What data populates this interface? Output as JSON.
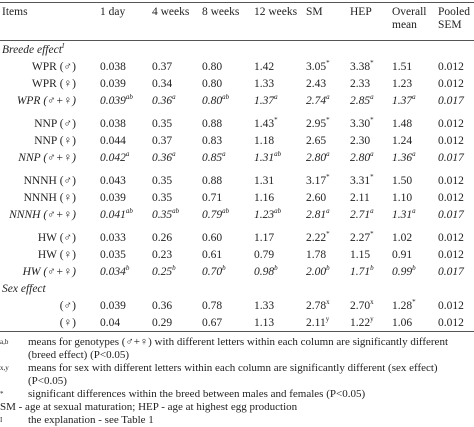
{
  "header": {
    "columns": [
      "Items",
      "1 day",
      "4 weeks",
      "8 weeks",
      "12 weeks",
      "SM",
      "HEP",
      "Overall mean",
      "Pooled SEM"
    ]
  },
  "sections": [
    {
      "title": "Breede effect",
      "title_sup": "I",
      "groups": [
        [
          {
            "label": "WPR (♂)",
            "cells": [
              "0.038",
              "0.37",
              "0.80",
              "1.42",
              {
                "text": "3.05",
                "sup": "*"
              },
              {
                "text": "3.38",
                "sup": "*"
              },
              "1.51",
              "0.012"
            ]
          },
          {
            "label": "WPR (♀)",
            "cells": [
              "0.039",
              "0.34",
              "0.80",
              "1.33",
              "2.43",
              "2.33",
              "1.23",
              "0.012"
            ]
          },
          {
            "label": "WPR (♂+♀)",
            "cells": [
              {
                "text": "0.039",
                "sup": "ab"
              },
              {
                "text": "0.36",
                "sup": "a"
              },
              {
                "text": "0.80",
                "sup": "ab"
              },
              {
                "text": "1.37",
                "sup": "a"
              },
              {
                "text": "2.74",
                "sup": "a"
              },
              {
                "text": "2.85",
                "sup": "a"
              },
              {
                "text": "1.37",
                "sup": "a"
              },
              "0.017"
            ]
          }
        ],
        [
          {
            "label": "NNP (♂)",
            "cells": [
              "0.038",
              "0.35",
              "0.88",
              {
                "text": "1.43",
                "sup": "*"
              },
              {
                "text": "2.95",
                "sup": "*"
              },
              {
                "text": "3.30",
                "sup": "*"
              },
              "1.48",
              "0.012"
            ]
          },
          {
            "label": "NNP (♀)",
            "cells": [
              "0.044",
              "0.37",
              "0.83",
              "1.18",
              "2.65",
              "2.30",
              "1.24",
              "0.012"
            ]
          },
          {
            "label": "NNP (♂+♀)",
            "cells": [
              {
                "text": "0.042",
                "sup": "a"
              },
              {
                "text": "0.36",
                "sup": "a"
              },
              {
                "text": "0.85",
                "sup": "a"
              },
              {
                "text": "1.31",
                "sup": "ab"
              },
              {
                "text": "2.80",
                "sup": "a"
              },
              {
                "text": "2.80",
                "sup": "a"
              },
              {
                "text": "1.36",
                "sup": "a"
              },
              "0.017"
            ]
          }
        ],
        [
          {
            "label": "NNNH (♂)",
            "cells": [
              "0.043",
              "0.35",
              "0.88",
              "1.31",
              {
                "text": "3.17",
                "sup": "*"
              },
              {
                "text": "3.31",
                "sup": "*"
              },
              "1.50",
              "0.012"
            ]
          },
          {
            "label": "NNNH (♀)",
            "cells": [
              "0.039",
              "0.35",
              "0.71",
              "1.16",
              "2.60",
              "2.11",
              "1.10",
              "0.012"
            ]
          },
          {
            "label": "NNNH (♂+♀)",
            "cells": [
              {
                "text": "0.041",
                "sup": "ab"
              },
              {
                "text": "0.35",
                "sup": "ab"
              },
              {
                "text": "0.79",
                "sup": "ab"
              },
              {
                "text": "1.23",
                "sup": "ab"
              },
              {
                "text": "2.81",
                "sup": "a"
              },
              {
                "text": "2.71",
                "sup": "a"
              },
              {
                "text": "1.31",
                "sup": "a"
              },
              "0.017"
            ]
          }
        ],
        [
          {
            "label": "HW (♂)",
            "cells": [
              "0.033",
              "0.26",
              "0.60",
              "1.17",
              {
                "text": "2.22",
                "sup": "*"
              },
              {
                "text": "2.27",
                "sup": "*"
              },
              "1.02",
              "0.012"
            ]
          },
          {
            "label": "HW (♀)",
            "cells": [
              "0.035",
              "0.23",
              "0.61",
              "0.79",
              "1.78",
              "1.15",
              "0.91",
              "0.012"
            ]
          },
          {
            "label": "HW (♂+♀)",
            "cells": [
              {
                "text": "0.034",
                "sup": "b"
              },
              {
                "text": "0.25",
                "sup": "b"
              },
              {
                "text": "0.70",
                "sup": "b"
              },
              {
                "text": "0.98",
                "sup": "b"
              },
              {
                "text": "2.00",
                "sup": "b"
              },
              {
                "text": "1.71",
                "sup": "b"
              },
              {
                "text": "0.99",
                "sup": "b"
              },
              "0.017"
            ]
          }
        ]
      ]
    },
    {
      "title": "Sex effect",
      "groups": [
        [
          {
            "label": "(♂)",
            "cells": [
              "0.039",
              "0.36",
              "0.78",
              "1.33",
              {
                "text": "2.78",
                "sup": "x"
              },
              {
                "text": "2.70",
                "sup": "x"
              },
              {
                "text": "1.28",
                "sup": "*"
              },
              "0.012"
            ]
          },
          {
            "label": "(♀)",
            "cells": [
              "0.04",
              "0.29",
              "0.67",
              "1.13",
              {
                "text": "2.11",
                "sup": "y"
              },
              {
                "text": "1.22",
                "sup": "y"
              },
              "1.06",
              "0.012"
            ]
          }
        ]
      ]
    }
  ],
  "footnotes": [
    {
      "mark": "a,b",
      "text": "means for genotypes (♂+♀) with different letters within each column are significantly different (breed effect) (P<0.05)"
    },
    {
      "mark": "x,y",
      "text": "means for sex with different letters within each column are significantly different (sex effect) (P<0.05)"
    },
    {
      "mark": "*",
      "text": "significant differences within the breed between males and females (P<0.05)"
    },
    {
      "text": "SM - age at sexual maturation; HEP - age at highest egg production"
    },
    {
      "mark": "I",
      "text": "the explanation - see Table 1"
    }
  ]
}
